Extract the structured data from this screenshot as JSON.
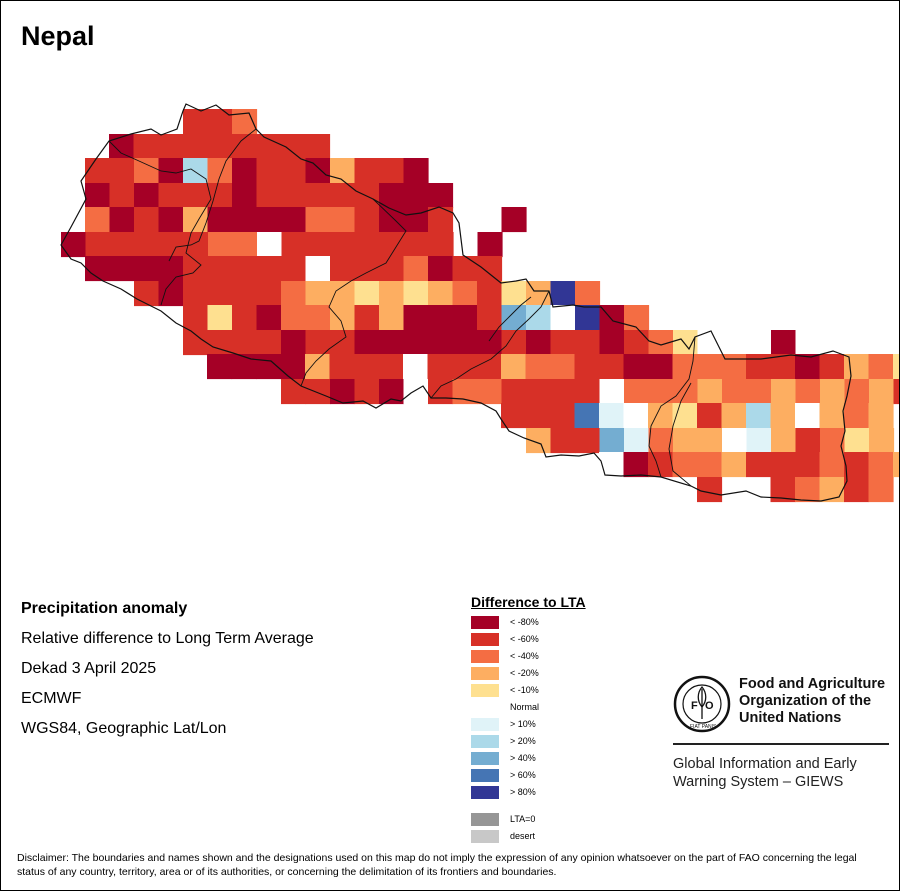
{
  "map": {
    "title": "Nepal",
    "info": {
      "variable": "Precipitation anomaly",
      "measure": "Relative difference to Long Term Average",
      "period": "Dekad 3 April 2025",
      "source": "ECMWF",
      "projection": "WGS84, Geographic Lat/Lon"
    }
  },
  "legend": {
    "title": "Difference to LTA",
    "items": [
      {
        "label": "< -80%",
        "color": "#a50026"
      },
      {
        "label": "< -60%",
        "color": "#d73027"
      },
      {
        "label": "< -40%",
        "color": "#f46d43"
      },
      {
        "label": "< -20%",
        "color": "#fdae61"
      },
      {
        "label": "< -10%",
        "color": "#fee090"
      },
      {
        "label": "Normal",
        "color": "#ffffff"
      },
      {
        "label": "> 10%",
        "color": "#e0f3f8"
      },
      {
        "label": "> 20%",
        "color": "#abd9e9"
      },
      {
        "label": "> 40%",
        "color": "#74add1"
      },
      {
        "label": "> 60%",
        "color": "#4575b4"
      },
      {
        "label": "> 80%",
        "color": "#313695"
      }
    ],
    "special": [
      {
        "label": "LTA=0",
        "color": "#969696"
      },
      {
        "label": "desert",
        "color": "#c8c8c8"
      }
    ]
  },
  "branding": {
    "fao_name_lines": [
      "Food and Agriculture",
      "Organization of the",
      "United Nations"
    ],
    "emblem_text": "FAO",
    "emblem_motto": "FIAT PANIS",
    "giews_lines": [
      "Global Information and Early",
      "Warning System – GIEWS"
    ]
  },
  "disclaimer": "Disclaimer: The boundaries and names shown and the designations used on this map do not imply the expression of any opinion whatsoever on the part of FAO concerning the legal status of any country, territory, area or of its authorities, or concerning the delimitation of its frontiers and boundaries."
}
